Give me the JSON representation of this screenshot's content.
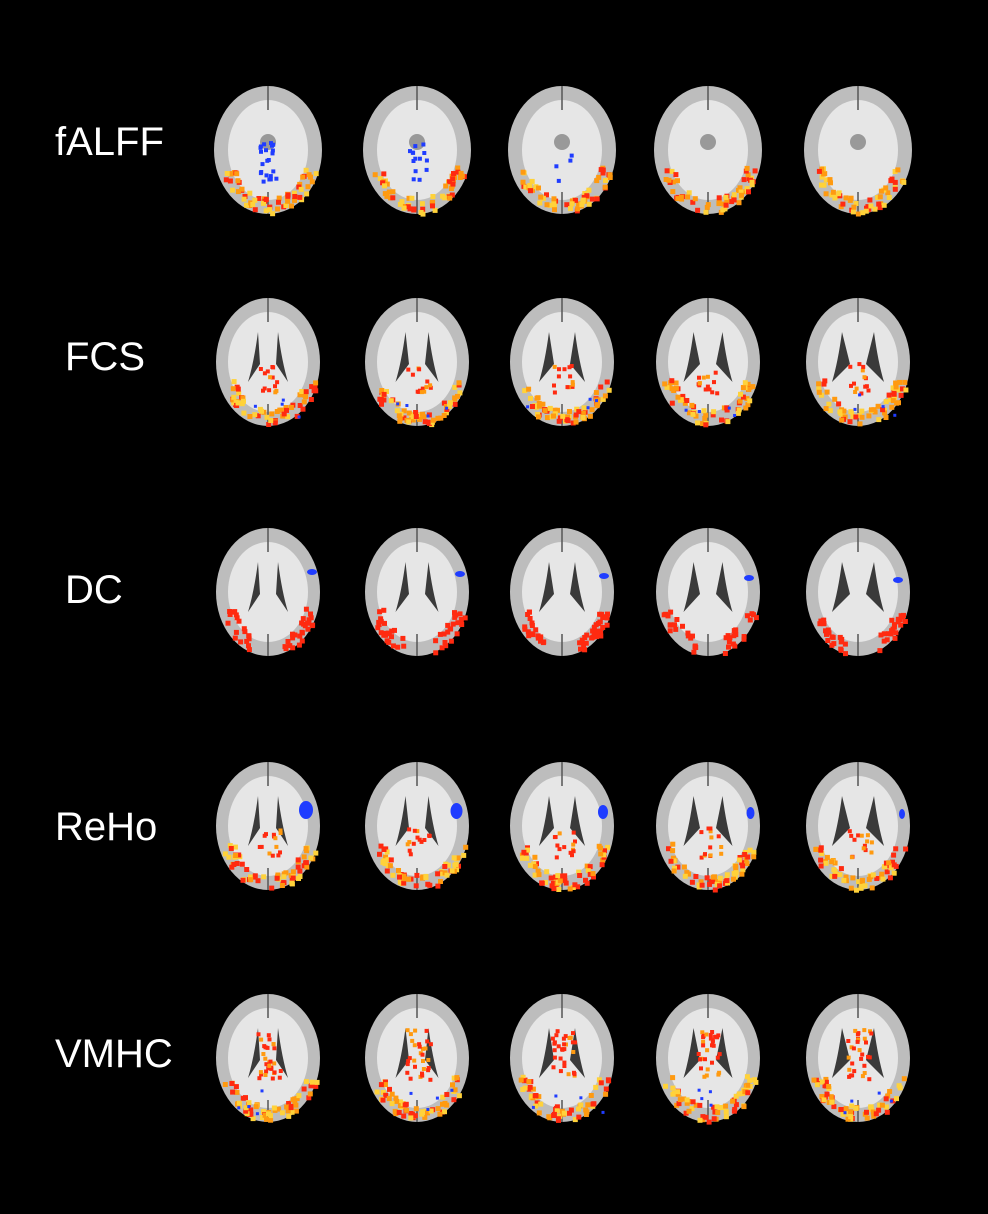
{
  "rows": [
    {
      "label": "fALFF"
    },
    {
      "label": "FCS"
    },
    {
      "label": "DC"
    },
    {
      "label": "ReHo"
    },
    {
      "label": "VMHC"
    }
  ],
  "slices_per_row": 5,
  "colors": {
    "background": "#000000",
    "brain_gray": "#bdbdbd",
    "white_matter": "#e6e6e6",
    "ventricle": "#3a3a3a",
    "positive_hot": "#ff2a10",
    "positive_warm": "#ff9a10",
    "positive_yellow": "#ffd23a",
    "negative_blue": "#1f3cff"
  }
}
